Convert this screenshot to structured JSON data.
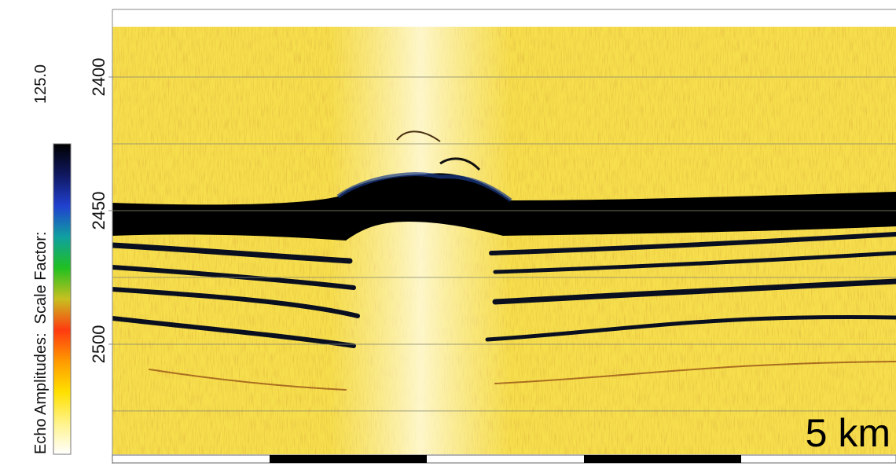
{
  "chart_data": {
    "type": "echogram",
    "colorbar_label": "Echo Amplitudes:  Scale Factor:",
    "scale_factor": "125.0",
    "scale_bar_label": "5 km",
    "ylim": [
      2374.7,
      2541.2
    ],
    "yticks": [
      2400,
      2450,
      2500
    ],
    "ygrid": [
      2400,
      2425,
      2450,
      2475,
      2500,
      2525
    ],
    "grid": true,
    "colormap": [
      "#ffffff",
      "#fff38a",
      "#ffe000",
      "#ff9a00",
      "#ff3a10",
      "#c8c020",
      "#20c020",
      "#10a0a0",
      "#2040d0",
      "#101860",
      "#000000"
    ]
  }
}
